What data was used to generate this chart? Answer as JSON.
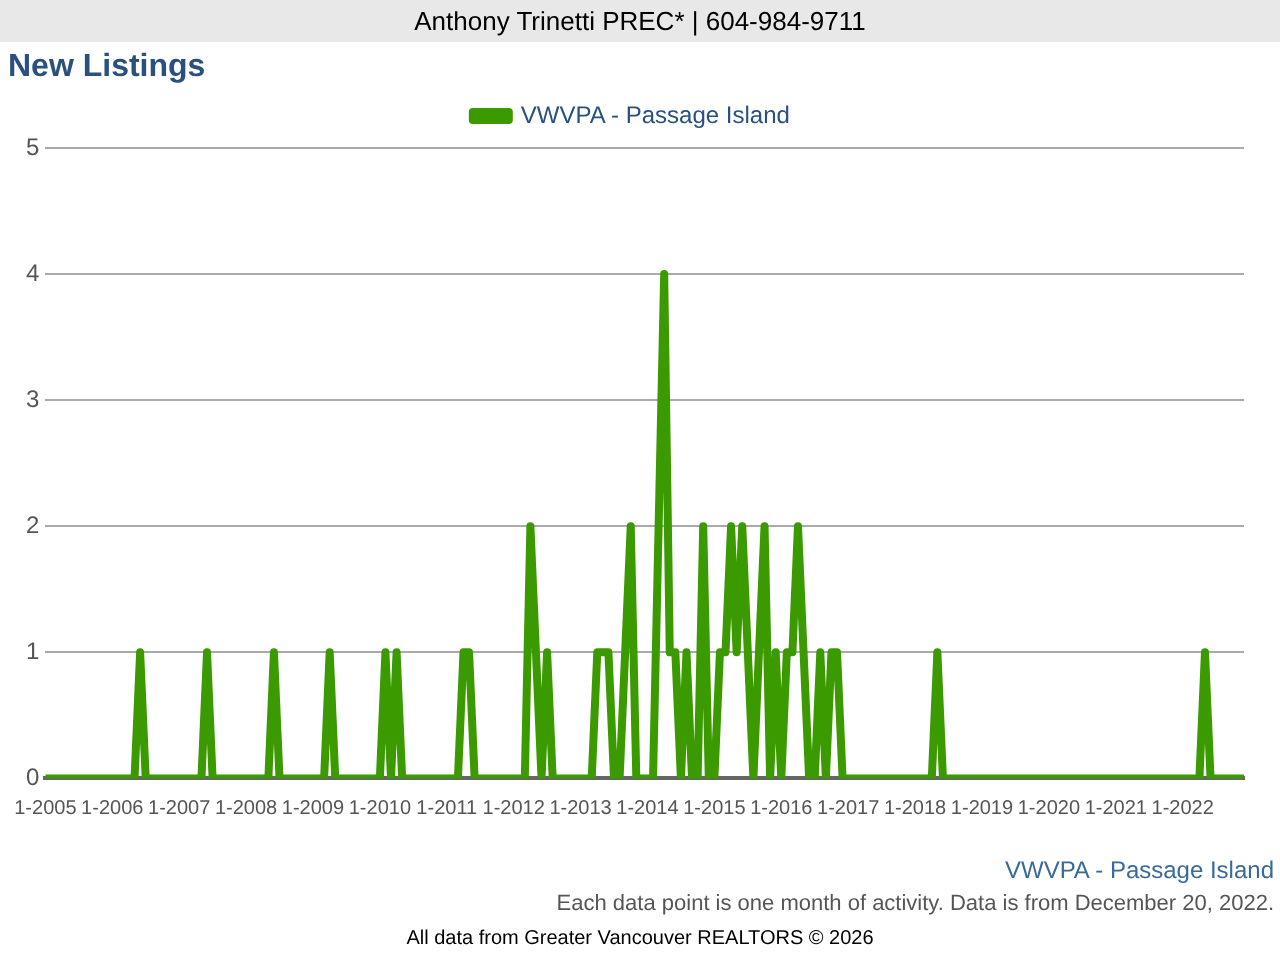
{
  "chart_data": {
    "type": "line",
    "title": "New Listings",
    "x": [
      "2005-01",
      "2006-05",
      "2006-06",
      "2006-07",
      "2007-05",
      "2007-06",
      "2007-07",
      "2008-05",
      "2008-06",
      "2008-07",
      "2009-03",
      "2009-04",
      "2009-05",
      "2010-01",
      "2010-02",
      "2010-03",
      "2010-04",
      "2010-05",
      "2011-03",
      "2011-04",
      "2011-05",
      "2011-06",
      "2012-03",
      "2012-04",
      "2012-05",
      "2012-06",
      "2012-07",
      "2012-08",
      "2013-03",
      "2013-04",
      "2013-05",
      "2013-06",
      "2013-07",
      "2013-08",
      "2013-09",
      "2013-10",
      "2013-11",
      "2014-02",
      "2014-03",
      "2014-04",
      "2014-05",
      "2014-06",
      "2014-07",
      "2014-08",
      "2014-09",
      "2014-10",
      "2014-11",
      "2014-12",
      "2015-01",
      "2015-02",
      "2015-03",
      "2015-04",
      "2015-05",
      "2015-06",
      "2015-07",
      "2015-08",
      "2015-09",
      "2015-10",
      "2015-11",
      "2015-12",
      "2016-01",
      "2016-02",
      "2016-03",
      "2016-04",
      "2016-05",
      "2016-06",
      "2016-07",
      "2016-08",
      "2016-09",
      "2016-10",
      "2016-11",
      "2016-12",
      "2018-04",
      "2018-05",
      "2018-06",
      "2022-04",
      "2022-05",
      "2022-06",
      "2022-12"
    ],
    "series": [
      {
        "name": "VWVPA - Passage Island",
        "color": "#3a9a00",
        "values": [
          0,
          0,
          1,
          0,
          0,
          1,
          0,
          0,
          1,
          0,
          0,
          1,
          0,
          0,
          1,
          0,
          1,
          0,
          0,
          1,
          1,
          0,
          0,
          2,
          1,
          0,
          1,
          0,
          0,
          1,
          1,
          1,
          0,
          0,
          1,
          2,
          0,
          0,
          2,
          4,
          1,
          1,
          0,
          1,
          0,
          0,
          2,
          0,
          0,
          1,
          1,
          2,
          1,
          2,
          1,
          0,
          1,
          2,
          0,
          1,
          0,
          1,
          1,
          2,
          1,
          0,
          0,
          1,
          0,
          1,
          1,
          0,
          0,
          1,
          0,
          0,
          1,
          0,
          0
        ]
      }
    ],
    "xlim": [
      "2005-01",
      "2022-12"
    ],
    "xticks": [
      {
        "value": "2005-01",
        "label": "1-2005"
      },
      {
        "value": "2006-01",
        "label": "1-2006"
      },
      {
        "value": "2007-01",
        "label": "1-2007"
      },
      {
        "value": "2008-01",
        "label": "1-2008"
      },
      {
        "value": "2009-01",
        "label": "1-2009"
      },
      {
        "value": "2010-01",
        "label": "1-2010"
      },
      {
        "value": "2011-01",
        "label": "1-2011"
      },
      {
        "value": "2012-01",
        "label": "1-2012"
      },
      {
        "value": "2013-01",
        "label": "1-2013"
      },
      {
        "value": "2014-01",
        "label": "1-2014"
      },
      {
        "value": "2015-01",
        "label": "1-2015"
      },
      {
        "value": "2016-01",
        "label": "1-2016"
      },
      {
        "value": "2017-01",
        "label": "1-2017"
      },
      {
        "value": "2018-01",
        "label": "1-2018"
      },
      {
        "value": "2019-01",
        "label": "1-2019"
      },
      {
        "value": "2020-01",
        "label": "1-2020"
      },
      {
        "value": "2021-01",
        "label": "1-2021"
      },
      {
        "value": "2022-01",
        "label": "1-2022"
      }
    ],
    "ylim": [
      0,
      5
    ],
    "yticks": [
      0,
      1,
      2,
      3,
      4,
      5
    ],
    "grid": "y",
    "legend": "top",
    "marker": "none",
    "line_style": "solid",
    "annotations": [
      "Anthony Trinetti PREC* | 604-984-9711",
      "VWVPA - Passage Island",
      "Each data point is one month of activity. Data is from December 20, 2022.",
      "All data from Greater Vancouver REALTORS © 2026"
    ]
  }
}
